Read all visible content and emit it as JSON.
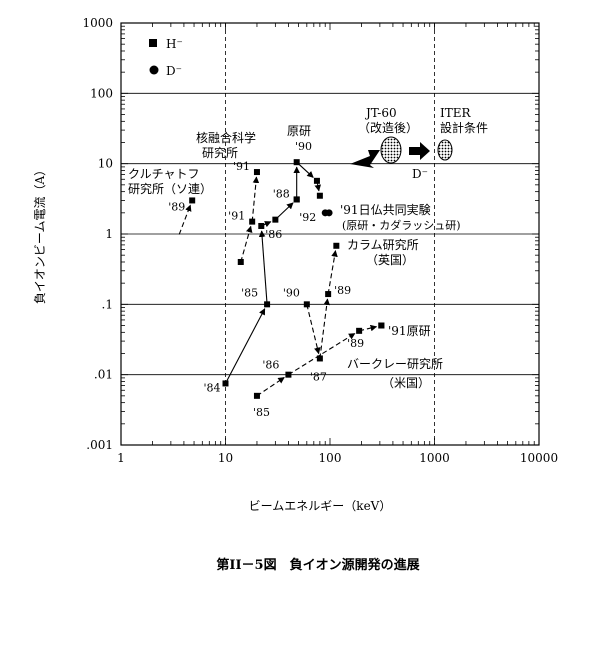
{
  "chart_data": {
    "type": "scatter",
    "title": "",
    "caption": "第II－5図　負イオン源開発の進展",
    "xlabel": "ビームエネルギー（keV）",
    "ylabel": "負イオンビーム電流（A）",
    "x_scale": "log",
    "y_scale": "log",
    "xlim": [
      1,
      10000
    ],
    "ylim": [
      0.001,
      1000
    ],
    "x_tick_labels": [
      "1",
      "10",
      "100",
      "1000",
      "10000"
    ],
    "y_tick_labels": [
      "1000",
      "100",
      "10",
      "1",
      ".1",
      ".01",
      ".001"
    ],
    "grid": "dashed vertical at 10 and 1000 keV, solid horizontal at each decade",
    "legend": [
      {
        "symbol": "square",
        "label": "H⁻"
      },
      {
        "symbol": "circle",
        "label": "D⁻"
      }
    ],
    "legend_position": "top-left",
    "series": [
      {
        "label": "クルチャトフ研究所（ソ連）",
        "style": "dashed",
        "points": [
          {
            "x": 4.8,
            "y": 3.0,
            "year": "'89"
          }
        ]
      },
      {
        "label": "核融合科学研究所",
        "style": "solid",
        "points": [
          {
            "x": 10,
            "y": 0.0075,
            "year": "'84"
          },
          {
            "x": 25,
            "y": 0.1,
            "year": "'85"
          },
          {
            "x": 22,
            "y": 1.3,
            "year": "'86"
          },
          {
            "x": 30,
            "y": 1.6
          },
          {
            "x": 48,
            "y": 3.1,
            "year": "'88"
          }
        ]
      },
      {
        "label": "核融合科学研究所",
        "style": "dashed",
        "points": [
          {
            "x": 14,
            "y": 0.4
          },
          {
            "x": 18,
            "y": 1.5,
            "year": "'91"
          },
          {
            "x": 20,
            "y": 7.6,
            "year": "'91"
          }
        ]
      },
      {
        "label": "原研",
        "style": "solid",
        "points": [
          {
            "x": 48,
            "y": 3.1
          },
          {
            "x": 48,
            "y": 10.5,
            "year": "'90"
          },
          {
            "x": 75,
            "y": 5.7
          },
          {
            "x": 80,
            "y": 3.5
          }
        ]
      },
      {
        "label": "日仏共同実験（原研・カダラッシュ研）",
        "style": "dashed",
        "marker": "circle",
        "points": [
          {
            "x": 90,
            "y": 2.0,
            "year": "'92"
          },
          {
            "x": 98,
            "y": 2.0,
            "year": "'91"
          }
        ]
      },
      {
        "label": "カラム研究所（英国）",
        "style": "dashed",
        "points": [
          {
            "x": 60,
            "y": 0.1,
            "year": "'90"
          },
          {
            "x": 80,
            "y": 0.017,
            "year": "'87"
          },
          {
            "x": 96,
            "y": 0.14,
            "year": "'89"
          },
          {
            "x": 115,
            "y": 0.68
          }
        ]
      },
      {
        "label": "バークレー研究所（米国）",
        "style": "dashed",
        "points": [
          {
            "x": 20,
            "y": 0.005,
            "year": "'85"
          },
          {
            "x": 40,
            "y": 0.01,
            "year": "'86"
          },
          {
            "x": 190,
            "y": 0.042,
            "year": "'89"
          },
          {
            "x": 310,
            "y": 0.05,
            "year": "'91"
          }
        ]
      }
    ],
    "targets": [
      {
        "label": "JT-60（改造後）",
        "x": 500,
        "y": 10
      },
      {
        "label": "ITER設計条件",
        "x": 1300,
        "y": 10
      }
    ],
    "annotations": [
      {
        "text": "'91原研",
        "x": 310,
        "y": 0.05
      },
      {
        "text": "D⁻",
        "x": 1000,
        "y": 6
      }
    ]
  },
  "labels": {
    "kurchatov": [
      "クルチャトフ",
      "研究所（ソ連）"
    ],
    "nifs": [
      "核融合科学",
      "研究所"
    ],
    "jaeri": "原研",
    "jaeri_year": "'90",
    "jt60": [
      "JT-60",
      "（改造後）"
    ],
    "iter": [
      "ITER",
      "設計条件"
    ],
    "dminus": "D⁻",
    "nichifutsu": [
      "'91日仏共同実験",
      "(原研・カダラッシュ研)"
    ],
    "culham": [
      "カラム研究所",
      "（英国）"
    ],
    "berkeley": [
      "バークレー研究所",
      "（米国）"
    ],
    "jaeri91": "'91原研"
  }
}
